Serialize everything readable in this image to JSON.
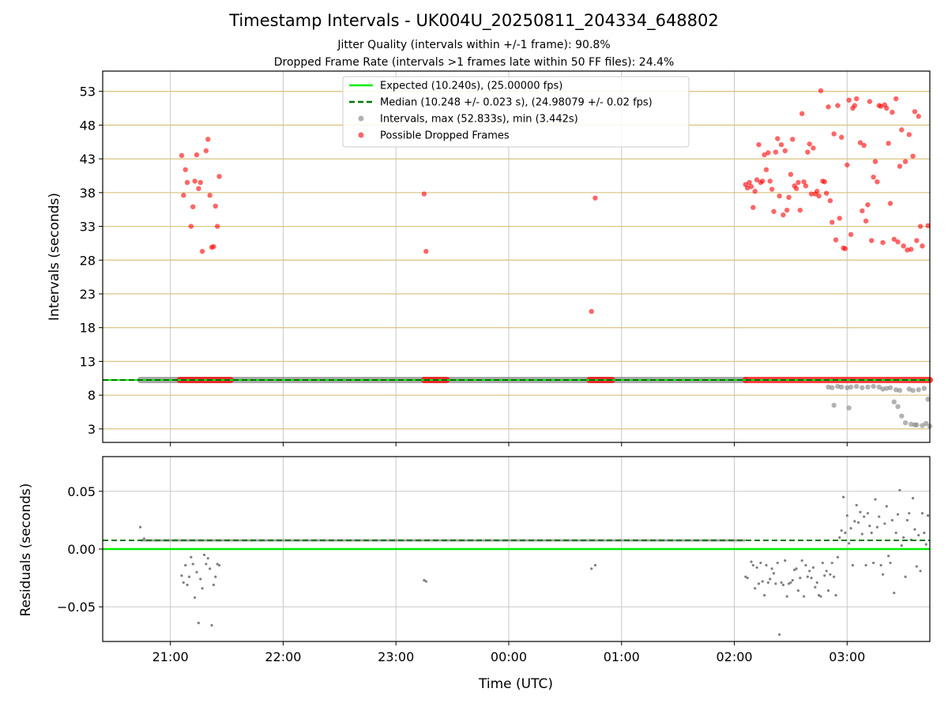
{
  "title": "Timestamp Intervals - UK004U_20250811_204334_648802",
  "subtitle_1": "Jitter Quality (intervals within +/-1 frame): 90.8%",
  "subtitle_2": "Dropped Frame Rate (intervals >1 frames late within 50 FF files): 24.4%",
  "colors": {
    "expected": "#00ee00",
    "median": "#007700",
    "intervals": "#808080",
    "dropped": "#ff0000",
    "hgrid": "#d9c27f",
    "vgrid": "#c8c8c8"
  },
  "chart_data": [
    {
      "type": "scatter",
      "panel": "top",
      "xlabel": "",
      "ylabel": "Intervals (seconds)",
      "x_range": [
        "20:24",
        "03:44"
      ],
      "ylim": [
        1,
        56
      ],
      "yticks": [
        3,
        8,
        13,
        18,
        23,
        28,
        33,
        38,
        43,
        48,
        53
      ],
      "ytick_labels": [
        "3",
        "8",
        "13",
        "18",
        "23",
        "28",
        "33",
        "38",
        "43",
        "48",
        "53"
      ],
      "grid": true,
      "legend_position": "top-center",
      "legend": [
        {
          "label": "Expected (10.240s), (25.00000 fps)",
          "style": "solid-line",
          "color": "#00ee00"
        },
        {
          "label": "Median (10.248 +/- 0.023 s), (24.98079 +/- 0.02 fps)",
          "style": "dashed-line",
          "color": "#007700"
        },
        {
          "label": "Intervals, max (52.833s), min (3.442s)",
          "style": "dot",
          "color": "#808080"
        },
        {
          "label": "Possible Dropped Frames",
          "style": "dot",
          "color": "#ff0000"
        }
      ],
      "expected_interval": 10.24,
      "median_interval": 10.248,
      "continuous_bands": [
        {
          "from": "20:44",
          "to": "02:06",
          "y": 10.25,
          "color": "#808080"
        },
        {
          "from": "21:05",
          "to": "21:32",
          "y": 10.25,
          "color": "#ff0000"
        },
        {
          "from": "23:15",
          "to": "23:27",
          "y": 10.25,
          "color": "#ff0000"
        },
        {
          "from": "00:43",
          "to": "00:55",
          "y": 10.25,
          "color": "#ff0000"
        },
        {
          "from": "02:06",
          "to": "03:44",
          "y": 10.25,
          "color": "#ff0000"
        }
      ],
      "dropped_points": [
        [
          "21:06",
          43.5
        ],
        [
          "21:07",
          37.6
        ],
        [
          "21:08",
          41.4
        ],
        [
          "21:09",
          39.5
        ],
        [
          "21:11",
          33.0
        ],
        [
          "21:12",
          35.9
        ],
        [
          "21:13",
          39.7
        ],
        [
          "21:14",
          43.6
        ],
        [
          "21:15",
          38.6
        ],
        [
          "21:16",
          39.5
        ],
        [
          "21:17",
          29.3
        ],
        [
          "21:19",
          44.2
        ],
        [
          "21:20",
          45.9
        ],
        [
          "21:21",
          37.6
        ],
        [
          "21:22",
          29.9
        ],
        [
          "21:23",
          30.0
        ],
        [
          "21:24",
          36.0
        ],
        [
          "21:25",
          33.0
        ],
        [
          "21:26",
          40.4
        ],
        [
          "23:15",
          37.8
        ],
        [
          "23:16",
          29.3
        ],
        [
          "00:44",
          20.4
        ],
        [
          "00:46",
          37.2
        ],
        [
          "02:06",
          39.2
        ],
        [
          "02:07",
          38.7
        ],
        [
          "02:08",
          39.5
        ],
        [
          "02:09",
          38.9
        ],
        [
          "02:10",
          35.8
        ],
        [
          "02:11",
          38.2
        ],
        [
          "02:12",
          39.9
        ],
        [
          "02:13",
          45.1
        ],
        [
          "02:14",
          39.5
        ],
        [
          "02:15",
          39.7
        ],
        [
          "02:16",
          43.6
        ],
        [
          "02:17",
          41.4
        ],
        [
          "02:18",
          43.9
        ],
        [
          "02:19",
          39.7
        ],
        [
          "02:20",
          38.5
        ],
        [
          "02:21",
          35.2
        ],
        [
          "02:22",
          44.0
        ],
        [
          "02:23",
          46.0
        ],
        [
          "02:24",
          37.5
        ],
        [
          "02:25",
          45.1
        ],
        [
          "02:26",
          34.7
        ],
        [
          "02:27",
          44.2
        ],
        [
          "02:28",
          35.4
        ],
        [
          "02:29",
          37.3
        ],
        [
          "02:30",
          40.7
        ],
        [
          "02:31",
          45.9
        ],
        [
          "02:32",
          39.0
        ],
        [
          "02:33",
          38.6
        ],
        [
          "02:34",
          39.5
        ],
        [
          "02:35",
          35.4
        ],
        [
          "02:36",
          49.7
        ],
        [
          "02:37",
          39.6
        ],
        [
          "02:38",
          39.0
        ],
        [
          "02:39",
          44.0
        ],
        [
          "02:40",
          45.2
        ],
        [
          "02:41",
          37.8
        ],
        [
          "02:42",
          44.6
        ],
        [
          "02:43",
          37.8
        ],
        [
          "02:44",
          38.2
        ],
        [
          "02:45",
          37.5
        ],
        [
          "02:46",
          53.1
        ],
        [
          "02:47",
          39.7
        ],
        [
          "02:48",
          39.6
        ],
        [
          "02:49",
          37.9
        ],
        [
          "02:50",
          50.7
        ],
        [
          "02:51",
          36.8
        ],
        [
          "02:52",
          33.6
        ],
        [
          "02:53",
          46.7
        ],
        [
          "02:54",
          31.0
        ],
        [
          "02:55",
          50.9
        ],
        [
          "02:56",
          34.2
        ],
        [
          "02:57",
          46.2
        ],
        [
          "02:58",
          29.8
        ],
        [
          "02:59",
          29.7
        ],
        [
          "03:00",
          42.1
        ],
        [
          "03:01",
          51.7
        ],
        [
          "03:02",
          31.8
        ],
        [
          "03:03",
          50.5
        ],
        [
          "03:04",
          50.9
        ],
        [
          "03:05",
          51.9
        ],
        [
          "03:07",
          45.4
        ],
        [
          "03:08",
          35.3
        ],
        [
          "03:09",
          45.0
        ],
        [
          "03:10",
          33.8
        ],
        [
          "03:11",
          36.2
        ],
        [
          "03:12",
          51.5
        ],
        [
          "03:13",
          30.9
        ],
        [
          "03:14",
          40.3
        ],
        [
          "03:15",
          42.6
        ],
        [
          "03:16",
          39.6
        ],
        [
          "03:17",
          50.9
        ],
        [
          "03:18",
          50.8
        ],
        [
          "03:19",
          30.6
        ],
        [
          "03:20",
          51.0
        ],
        [
          "03:21",
          50.5
        ],
        [
          "03:22",
          45.3
        ],
        [
          "03:23",
          36.4
        ],
        [
          "03:24",
          49.9
        ],
        [
          "03:25",
          31.1
        ],
        [
          "03:26",
          51.9
        ],
        [
          "03:27",
          30.7
        ],
        [
          "03:28",
          41.9
        ],
        [
          "03:29",
          47.3
        ],
        [
          "03:30",
          30.1
        ],
        [
          "03:31",
          42.6
        ],
        [
          "03:32",
          29.5
        ],
        [
          "03:33",
          46.6
        ],
        [
          "03:34",
          29.6
        ],
        [
          "03:35",
          43.4
        ],
        [
          "03:36",
          50.0
        ],
        [
          "03:37",
          30.9
        ],
        [
          "03:38",
          49.3
        ],
        [
          "03:39",
          33.0
        ],
        [
          "03:40",
          30.1
        ],
        [
          "03:43",
          33.1
        ]
      ],
      "interval_points": [
        [
          "02:50",
          9.2
        ],
        [
          "02:52",
          9.1
        ],
        [
          "02:53",
          6.5
        ],
        [
          "02:55",
          9.3
        ],
        [
          "02:57",
          9.2
        ],
        [
          "03:00",
          9.1
        ],
        [
          "03:01",
          6.1
        ],
        [
          "03:02",
          9.2
        ],
        [
          "03:05",
          9.3
        ],
        [
          "03:08",
          9.1
        ],
        [
          "03:11",
          9.2
        ],
        [
          "03:14",
          9.3
        ],
        [
          "03:17",
          9.2
        ],
        [
          "03:19",
          8.9
        ],
        [
          "03:21",
          9.0
        ],
        [
          "03:23",
          9.1
        ],
        [
          "03:25",
          7.0
        ],
        [
          "03:26",
          8.8
        ],
        [
          "03:27",
          6.3
        ],
        [
          "03:28",
          8.7
        ],
        [
          "03:29",
          4.9
        ],
        [
          "03:31",
          3.9
        ],
        [
          "03:33",
          8.9
        ],
        [
          "03:34",
          3.7
        ],
        [
          "03:35",
          8.7
        ],
        [
          "03:36",
          3.6
        ],
        [
          "03:37",
          3.6
        ],
        [
          "03:38",
          8.8
        ],
        [
          "03:40",
          3.5
        ],
        [
          "03:41",
          9.0
        ],
        [
          "03:42",
          3.8
        ],
        [
          "03:43",
          7.4
        ],
        [
          "03:44",
          3.4
        ]
      ]
    },
    {
      "type": "scatter",
      "panel": "bottom",
      "xlabel": "Time (UTC)",
      "ylabel": "Residuals (seconds)",
      "x_range": [
        "20:24",
        "03:44"
      ],
      "xticks": [
        "21:00",
        "22:00",
        "23:00",
        "00:00",
        "01:00",
        "02:00",
        "03:00"
      ],
      "xtick_labels": [
        "21:00",
        "22:00",
        "23:00",
        "00:00",
        "01:00",
        "02:00",
        "03:00"
      ],
      "ylim": [
        -0.08,
        0.08
      ],
      "yticks": [
        -0.05,
        0.0,
        0.05
      ],
      "ytick_labels": [
        "−0.05",
        "0.00",
        "0.05"
      ],
      "grid": true,
      "expected_residual": 0.0,
      "median_residual": 0.0075,
      "continuous_bands": [
        {
          "from": "20:44",
          "to": "02:06",
          "y": 0.0075,
          "color": "#808080"
        }
      ],
      "residual_points": [
        [
          "20:44",
          0.019
        ],
        [
          "20:46",
          0.009
        ],
        [
          "21:06",
          -0.023
        ],
        [
          "21:07",
          -0.029
        ],
        [
          "21:08",
          -0.014
        ],
        [
          "21:09",
          -0.031
        ],
        [
          "21:10",
          -0.024
        ],
        [
          "21:11",
          -0.007
        ],
        [
          "21:12",
          -0.013
        ],
        [
          "21:13",
          -0.042
        ],
        [
          "21:14",
          -0.02
        ],
        [
          "21:15",
          -0.064
        ],
        [
          "21:16",
          -0.026
        ],
        [
          "21:17",
          -0.034
        ],
        [
          "21:18",
          -0.005
        ],
        [
          "21:19",
          -0.013
        ],
        [
          "21:20",
          -0.008
        ],
        [
          "21:21",
          -0.017
        ],
        [
          "21:22",
          -0.066
        ],
        [
          "21:23",
          -0.031
        ],
        [
          "21:24",
          -0.024
        ],
        [
          "21:25",
          -0.013
        ],
        [
          "21:26",
          -0.014
        ],
        [
          "23:15",
          -0.027
        ],
        [
          "23:16",
          -0.028
        ],
        [
          "00:44",
          -0.017
        ],
        [
          "00:46",
          -0.014
        ],
        [
          "02:06",
          -0.024
        ],
        [
          "02:07",
          -0.025
        ],
        [
          "02:09",
          -0.011
        ],
        [
          "02:10",
          -0.014
        ],
        [
          "02:11",
          -0.034
        ],
        [
          "02:12",
          -0.016
        ],
        [
          "02:13",
          -0.03
        ],
        [
          "02:14",
          -0.012
        ],
        [
          "02:15",
          -0.028
        ],
        [
          "02:16",
          -0.04
        ],
        [
          "02:17",
          -0.014
        ],
        [
          "02:18",
          -0.029
        ],
        [
          "02:19",
          -0.026
        ],
        [
          "02:20",
          -0.017
        ],
        [
          "02:21",
          -0.021
        ],
        [
          "02:22",
          -0.03
        ],
        [
          "02:23",
          -0.012
        ],
        [
          "02:24",
          -0.074
        ],
        [
          "02:25",
          -0.029
        ],
        [
          "02:26",
          -0.031
        ],
        [
          "02:27",
          -0.01
        ],
        [
          "02:28",
          -0.041
        ],
        [
          "02:29",
          -0.03
        ],
        [
          "02:30",
          -0.029
        ],
        [
          "02:31",
          -0.027
        ],
        [
          "02:32",
          -0.018
        ],
        [
          "02:33",
          -0.017
        ],
        [
          "02:34",
          -0.036
        ],
        [
          "02:35",
          -0.025
        ],
        [
          "02:36",
          -0.01
        ],
        [
          "02:37",
          -0.041
        ],
        [
          "02:38",
          -0.014
        ],
        [
          "02:39",
          -0.024
        ],
        [
          "02:40",
          -0.019
        ],
        [
          "02:41",
          -0.025
        ],
        [
          "02:42",
          -0.016
        ],
        [
          "02:43",
          -0.033
        ],
        [
          "02:44",
          -0.029
        ],
        [
          "02:45",
          -0.04
        ],
        [
          "02:46",
          -0.041
        ],
        [
          "02:47",
          -0.012
        ],
        [
          "02:48",
          -0.023
        ],
        [
          "02:49",
          -0.019
        ],
        [
          "02:50",
          -0.036
        ],
        [
          "02:51",
          -0.022
        ],
        [
          "02:52",
          -0.012
        ],
        [
          "02:53",
          -0.024
        ],
        [
          "02:54",
          -0.04
        ],
        [
          "02:55",
          -0.007
        ],
        [
          "02:56",
          0.01
        ],
        [
          "02:57",
          0.016
        ],
        [
          "02:58",
          0.045
        ],
        [
          "02:59",
          0.014
        ],
        [
          "03:00",
          0.029
        ],
        [
          "03:01",
          0.005
        ],
        [
          "03:02",
          0.018
        ],
        [
          "03:03",
          -0.014
        ],
        [
          "03:04",
          0.024
        ],
        [
          "03:05",
          0.038
        ],
        [
          "03:06",
          0.023
        ],
        [
          "03:07",
          0.032
        ],
        [
          "03:08",
          0.013
        ],
        [
          "03:09",
          0.028
        ],
        [
          "03:10",
          -0.014
        ],
        [
          "03:11",
          0.031
        ],
        [
          "03:12",
          0.02
        ],
        [
          "03:13",
          0.014
        ],
        [
          "03:14",
          -0.012
        ],
        [
          "03:15",
          0.043
        ],
        [
          "03:16",
          0.019
        ],
        [
          "03:17",
          0.028
        ],
        [
          "03:18",
          -0.014
        ],
        [
          "03:19",
          -0.022
        ],
        [
          "03:20",
          0.022
        ],
        [
          "03:21",
          0.037
        ],
        [
          "03:22",
          -0.006
        ],
        [
          "03:23",
          -0.012
        ],
        [
          "03:24",
          0.025
        ],
        [
          "03:25",
          -0.038
        ],
        [
          "03:26",
          0.014
        ],
        [
          "03:27",
          0.03
        ],
        [
          "03:28",
          0.051
        ],
        [
          "03:29",
          0.003
        ],
        [
          "03:30",
          0.01
        ],
        [
          "03:31",
          -0.024
        ],
        [
          "03:32",
          0.025
        ],
        [
          "03:33",
          0.031
        ],
        [
          "03:34",
          0.008
        ],
        [
          "03:35",
          0.044
        ],
        [
          "03:36",
          0.017
        ],
        [
          "03:37",
          -0.015
        ],
        [
          "03:38",
          0.012
        ],
        [
          "03:39",
          -0.019
        ],
        [
          "03:40",
          0.031
        ],
        [
          "03:41",
          0.014
        ],
        [
          "03:42",
          0.004
        ],
        [
          "03:43",
          0.029
        ]
      ]
    }
  ]
}
